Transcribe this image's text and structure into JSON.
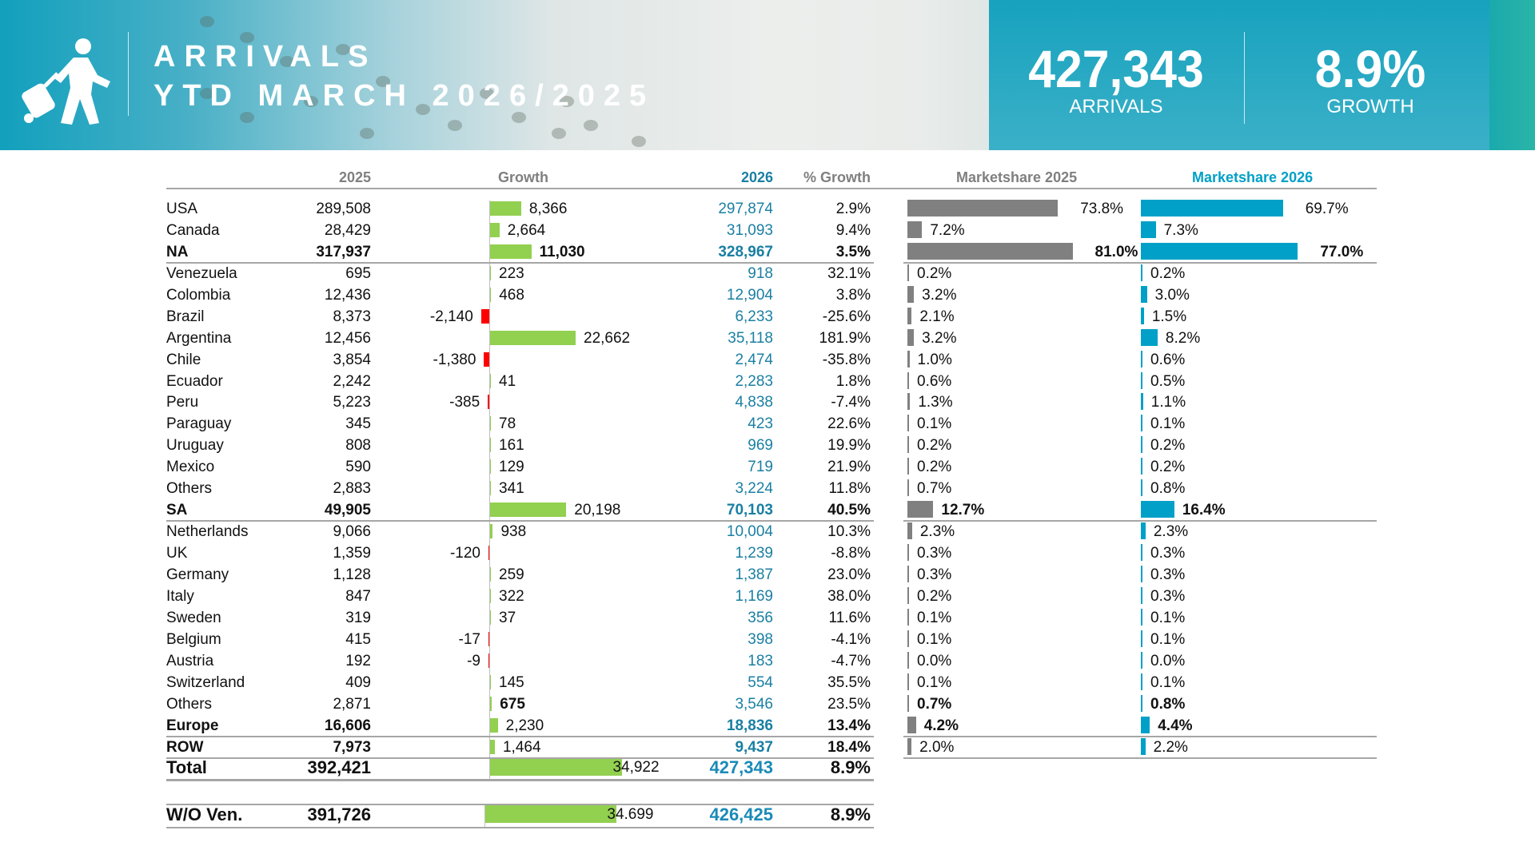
{
  "header": {
    "title_line1": "ARRIVALS",
    "title_line2": "YTD MARCH 2026/2025",
    "icon": "traveler-with-suitcase-icon",
    "kpi_arrivals_value": "427,343",
    "kpi_arrivals_label": "ARRIVALS",
    "kpi_growth_value": "8.9%",
    "kpi_growth_label": "GROWTH"
  },
  "columns": {
    "y2025": "2025",
    "growth": "Growth",
    "y2026": "2026",
    "pct_growth": "% Growth",
    "ms2025": "Marketshare 2025",
    "ms2026": "Marketshare 2026"
  },
  "colors": {
    "positive_growth": "#92d050",
    "negative_growth": "#ff0000",
    "ms2025_bar": "#808080",
    "ms2026_bar": "#00a0c8",
    "y2026_text": "#1a7fa3",
    "header_bg": "#17a2be"
  },
  "rows": [
    {
      "name": "USA",
      "y2025": "289,508",
      "growth": "8,366",
      "y2026": "297,874",
      "pct": "2.9%",
      "ms2025": "73.8%",
      "ms2026": "69.7%"
    },
    {
      "name": "Canada",
      "y2025": "28,429",
      "growth": "2,664",
      "y2026": "31,093",
      "pct": "9.4%",
      "ms2025": "7.2%",
      "ms2026": "7.3%"
    },
    {
      "name": "NA",
      "y2025": "317,937",
      "growth": "11,030",
      "y2026": "328,967",
      "pct": "3.5%",
      "ms2025": "81.0%",
      "ms2026": "77.0%",
      "bold": true
    },
    {
      "name": "Venezuela",
      "y2025": "695",
      "growth": "223",
      "y2026": "918",
      "pct": "32.1%",
      "ms2025": "0.2%",
      "ms2026": "0.2%"
    },
    {
      "name": "Colombia",
      "y2025": "12,436",
      "growth": "468",
      "y2026": "12,904",
      "pct": "3.8%",
      "ms2025": "3.2%",
      "ms2026": "3.0%"
    },
    {
      "name": "Brazil",
      "y2025": "8,373",
      "growth": "-2,140",
      "y2026": "6,233",
      "pct": "-25.6%",
      "ms2025": "2.1%",
      "ms2026": "1.5%"
    },
    {
      "name": "Argentina",
      "y2025": "12,456",
      "growth": "22,662",
      "y2026": "35,118",
      "pct": "181.9%",
      "ms2025": "3.2%",
      "ms2026": "8.2%"
    },
    {
      "name": "Chile",
      "y2025": "3,854",
      "growth": "-1,380",
      "y2026": "2,474",
      "pct": "-35.8%",
      "ms2025": "1.0%",
      "ms2026": "0.6%"
    },
    {
      "name": "Ecuador",
      "y2025": "2,242",
      "growth": "41",
      "y2026": "2,283",
      "pct": "1.8%",
      "ms2025": "0.6%",
      "ms2026": "0.5%"
    },
    {
      "name": "Peru",
      "y2025": "5,223",
      "growth": "-385",
      "y2026": "4,838",
      "pct": "-7.4%",
      "ms2025": "1.3%",
      "ms2026": "1.1%"
    },
    {
      "name": "Paraguay",
      "y2025": "345",
      "growth": "78",
      "y2026": "423",
      "pct": "22.6%",
      "ms2025": "0.1%",
      "ms2026": "0.1%"
    },
    {
      "name": "Uruguay",
      "y2025": "808",
      "growth": "161",
      "y2026": "969",
      "pct": "19.9%",
      "ms2025": "0.2%",
      "ms2026": "0.2%"
    },
    {
      "name": "Mexico",
      "y2025": "590",
      "growth": "129",
      "y2026": "719",
      "pct": "21.9%",
      "ms2025": "0.2%",
      "ms2026": "0.2%"
    },
    {
      "name": "Others",
      "y2025": "2,883",
      "growth": "341",
      "y2026": "3,224",
      "pct": "11.8%",
      "ms2025": "0.7%",
      "ms2026": "0.8%"
    },
    {
      "name": "SA",
      "y2025": "49,905",
      "growth": "20,198",
      "y2026": "70,103",
      "pct": "40.5%",
      "ms2025": "12.7%",
      "ms2026": "16.4%",
      "bold": true,
      "plain_growth": true
    },
    {
      "name": "Netherlands",
      "y2025": "9,066",
      "growth": "938",
      "y2026": "10,004",
      "pct": "10.3%",
      "ms2025": "2.3%",
      "ms2026": "2.3%"
    },
    {
      "name": "UK",
      "y2025": "1,359",
      "growth": "-120",
      "y2026": "1,239",
      "pct": "-8.8%",
      "ms2025": "0.3%",
      "ms2026": "0.3%"
    },
    {
      "name": "Germany",
      "y2025": "1,128",
      "growth": "259",
      "y2026": "1,387",
      "pct": "23.0%",
      "ms2025": "0.3%",
      "ms2026": "0.3%"
    },
    {
      "name": "Italy",
      "y2025": "847",
      "growth": "322",
      "y2026": "1,169",
      "pct": "38.0%",
      "ms2025": "0.2%",
      "ms2026": "0.3%"
    },
    {
      "name": "Sweden",
      "y2025": "319",
      "growth": "37",
      "y2026": "356",
      "pct": "11.6%",
      "ms2025": "0.1%",
      "ms2026": "0.1%"
    },
    {
      "name": "Belgium",
      "y2025": "415",
      "growth": "-17",
      "y2026": "398",
      "pct": "-4.1%",
      "ms2025": "0.1%",
      "ms2026": "0.1%"
    },
    {
      "name": "Austria",
      "y2025": "192",
      "growth": "-9",
      "y2026": "183",
      "pct": "-4.7%",
      "ms2025": "0.0%",
      "ms2026": "0.0%"
    },
    {
      "name": "Switzerland",
      "y2025": "409",
      "growth": "145",
      "y2026": "554",
      "pct": "35.5%",
      "ms2025": "0.1%",
      "ms2026": "0.1%"
    },
    {
      "name": "Others",
      "y2025": "2,871",
      "growth": "675",
      "y2026": "3,546",
      "pct": "23.5%",
      "ms2025": "0.7%",
      "ms2026": "0.8%",
      "bold_growth_ms": true
    },
    {
      "name": "Europe",
      "y2025": "16,606",
      "growth": "2,230",
      "y2026": "18,836",
      "pct": "13.4%",
      "ms2025": "4.2%",
      "ms2026": "4.4%",
      "bold": true,
      "plain_growth": true
    },
    {
      "name": "ROW",
      "y2025": "7,973",
      "growth": "1,464",
      "y2026": "9,437",
      "pct": "18.4%",
      "ms2025": "2.0%",
      "ms2026": "2.2%",
      "bold": true,
      "plain_growth": true,
      "plain_ms": true
    }
  ],
  "total": {
    "name": "Total",
    "y2025": "392,421",
    "growth": "34,922",
    "y2026": "427,343",
    "pct": "8.9%"
  },
  "without_venezuela": {
    "name": "W/O Ven.",
    "y2025": "391,726",
    "growth": "34.699",
    "y2026": "426,425",
    "pct": "8.9%"
  }
}
